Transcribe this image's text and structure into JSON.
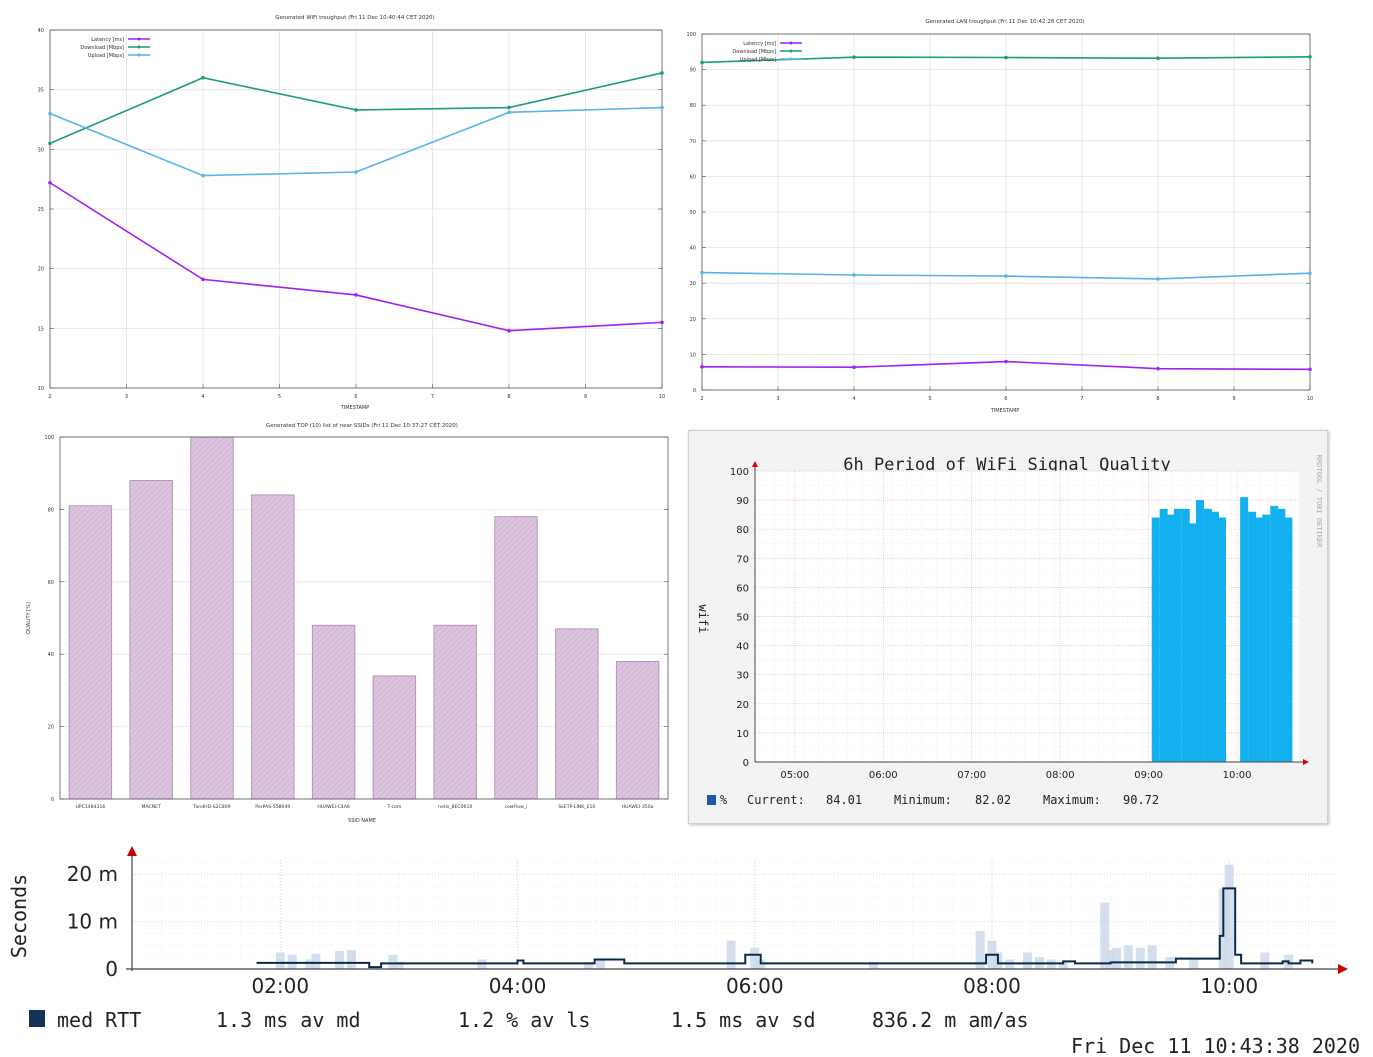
{
  "chart_data": [
    {
      "id": "wifi",
      "type": "line",
      "title": "Generated WiFi troughput (Fri 11 Dec 10:40:44 CET 2020)",
      "xlabel": "TIMESTAMP",
      "ylabel": "",
      "x": [
        2,
        4,
        6,
        8,
        10
      ],
      "xlim": [
        2,
        10
      ],
      "xticks": [
        "2",
        "3",
        "4",
        "5",
        "6",
        "7",
        "8",
        "9",
        "10"
      ],
      "ylim": [
        10,
        40
      ],
      "yticks": [
        "10",
        "15",
        "20",
        "25",
        "30",
        "35",
        "40"
      ],
      "grid": true,
      "legend_position": "top-left",
      "series": [
        {
          "name": "Latency [ms]",
          "color": "#a020f0",
          "values": [
            27.2,
            19.1,
            17.8,
            14.8,
            15.5
          ]
        },
        {
          "name": "Download [Mbps]",
          "color": "#1a9e78",
          "values": [
            30.5,
            36.0,
            33.3,
            33.5,
            36.4
          ]
        },
        {
          "name": "Upload [Mbps]",
          "color": "#56b4e9",
          "values": [
            33.0,
            27.8,
            28.1,
            33.1,
            33.5
          ]
        }
      ]
    },
    {
      "id": "lan",
      "type": "line",
      "title": "Generated LAN troughput (Fri 11 Dec 10:42:26 CET 2020)",
      "xlabel": "TIMESTAMP",
      "ylabel": "",
      "x": [
        2,
        4,
        6,
        8,
        10
      ],
      "xlim": [
        2,
        10
      ],
      "xticks": [
        "2",
        "3",
        "4",
        "5",
        "6",
        "7",
        "8",
        "9",
        "10"
      ],
      "ylim": [
        0,
        100
      ],
      "yticks": [
        "0",
        "10",
        "20",
        "30",
        "40",
        "50",
        "60",
        "70",
        "80",
        "90",
        "100"
      ],
      "grid": true,
      "legend_position": "top-left",
      "series": [
        {
          "name": "Latency [ms]",
          "color": "#a020f0",
          "values": [
            6.5,
            6.4,
            8.0,
            6.0,
            5.8
          ]
        },
        {
          "name": "Download [Mbps]",
          "color": "#1a9e78",
          "values": [
            92.0,
            93.5,
            93.4,
            93.2,
            93.6
          ]
        },
        {
          "name": "Upload [Mbps]",
          "color": "#56b4e9",
          "values": [
            33.0,
            32.3,
            32.0,
            31.2,
            32.8
          ]
        }
      ]
    },
    {
      "id": "ssid",
      "type": "bar",
      "title": "Generated TOP (10) list of near SSIDs (Fri 11 Dec 10:37:27 CET 2020)",
      "xlabel": "SSID NAME",
      "ylabel": "QUALITY [%]",
      "categories": [
        "UPC1484316",
        "MACNET",
        "TandHD-S2C809",
        "PerPAS-558049",
        "HUAWEI-C4A8",
        "T-com",
        "netis_8EC0610",
        "сомFlow_i",
        "SkETP-LINK_E10",
        "HUAWEI-350a"
      ],
      "values": [
        81,
        88,
        100,
        84,
        48,
        34,
        48,
        78,
        47,
        38
      ],
      "ylim": [
        0,
        100
      ],
      "yticks": [
        "0",
        "20",
        "40",
        "60",
        "80",
        "100"
      ],
      "color": "#d8bddb",
      "grid": true
    },
    {
      "id": "signal",
      "type": "bar",
      "title": "6h Period of WiFi Signal Quality",
      "ylabel": "wifi",
      "xticks": [
        "05:00",
        "06:00",
        "07:00",
        "08:00",
        "09:00",
        "10:00"
      ],
      "xlim": [
        4.55,
        10.7
      ],
      "yticks": [
        "0",
        "10",
        "20",
        "30",
        "40",
        "50",
        "60",
        "70",
        "80",
        "90",
        "100"
      ],
      "ylim": [
        0,
        100
      ],
      "color": "#12b0ef",
      "x": [
        9.08,
        9.17,
        9.25,
        9.33,
        9.42,
        9.5,
        9.58,
        9.67,
        9.75,
        9.83,
        9.92,
        10.08,
        10.17,
        10.25,
        10.33,
        10.42,
        10.5,
        10.58
      ],
      "values": [
        84,
        87,
        85,
        87,
        87,
        82,
        90,
        87,
        86,
        84,
        0,
        91,
        86,
        84,
        85,
        88,
        87,
        84
      ],
      "legend": {
        "unit": "%",
        "current_label": "Current:",
        "current": "84.01",
        "minimum_label": "Minimum:",
        "minimum": "82.02",
        "maximum_label": "Maximum:",
        "maximum": "90.72"
      },
      "side_text": "RRDTOOL / TOBI OETIKER"
    },
    {
      "id": "rtt",
      "type": "line",
      "ylabel": "Seconds",
      "xticks": [
        "02:00",
        "04:00",
        "06:00",
        "08:00",
        "10:00"
      ],
      "xlim": [
        0.75,
        10.9
      ],
      "yticks": [
        "0",
        "10 m",
        "20 m"
      ],
      "ylim": [
        0,
        0.023
      ],
      "color": "#0a2a4a",
      "x": [
        1.8,
        2.5,
        2.75,
        2.85,
        3.0,
        3.5,
        3.9,
        4.0,
        4.05,
        4.6,
        4.65,
        4.85,
        4.9,
        5.5,
        5.9,
        5.92,
        6.0,
        6.05,
        6.1,
        6.5,
        7.0,
        7.5,
        7.9,
        7.95,
        8.0,
        8.05,
        8.5,
        8.6,
        8.7,
        8.8,
        9.0,
        9.5,
        9.55,
        9.7,
        9.9,
        9.92,
        9.95,
        10.0,
        10.05,
        10.1,
        10.4,
        10.45,
        10.5,
        10.6,
        10.7
      ],
      "values": [
        0.0013,
        0.0013,
        0.0004,
        0.0012,
        0.0012,
        0.0012,
        0.0012,
        0.0018,
        0.0012,
        0.0012,
        0.002,
        0.002,
        0.0012,
        0.0012,
        0.0012,
        0.003,
        0.003,
        0.0012,
        0.0012,
        0.0012,
        0.0012,
        0.0012,
        0.0012,
        0.003,
        0.003,
        0.0012,
        0.0012,
        0.0016,
        0.0012,
        0.0012,
        0.0014,
        0.0014,
        0.0022,
        0.0022,
        0.0022,
        0.007,
        0.017,
        0.017,
        0.003,
        0.0012,
        0.0012,
        0.0016,
        0.0012,
        0.0018,
        0.0012
      ],
      "bg_x": [
        2.0,
        2.1,
        2.25,
        2.3,
        2.5,
        2.6,
        2.95,
        3.0,
        3.7,
        4.6,
        4.7,
        5.8,
        6.0,
        6.05,
        7.0,
        7.9,
        8.0,
        8.05,
        8.15,
        8.3,
        8.4,
        8.5,
        8.6,
        8.95,
        9.0,
        9.05,
        9.15,
        9.25,
        9.35,
        9.5,
        9.7,
        9.95,
        10.0,
        10.3,
        10.5
      ],
      "bg_values": [
        0.0035,
        0.003,
        0.002,
        0.0032,
        0.0038,
        0.004,
        0.003,
        0.0015,
        0.002,
        0.0015,
        0.002,
        0.006,
        0.0045,
        0.002,
        0.0015,
        0.008,
        0.006,
        0.0035,
        0.002,
        0.0035,
        0.0025,
        0.002,
        0.0015,
        0.014,
        0.004,
        0.0045,
        0.005,
        0.0045,
        0.005,
        0.0025,
        0.002,
        0.017,
        0.022,
        0.0035,
        0.003
      ],
      "legend": {
        "label": "med RTT",
        "av_md": "1.3 ms av md",
        "av_ls": "1.2 % av ls",
        "av_sd": "1.5 ms av sd",
        "am_as": "836.2 m am/as"
      },
      "timestamp": "Fri Dec 11 10:43:38 2020"
    }
  ]
}
